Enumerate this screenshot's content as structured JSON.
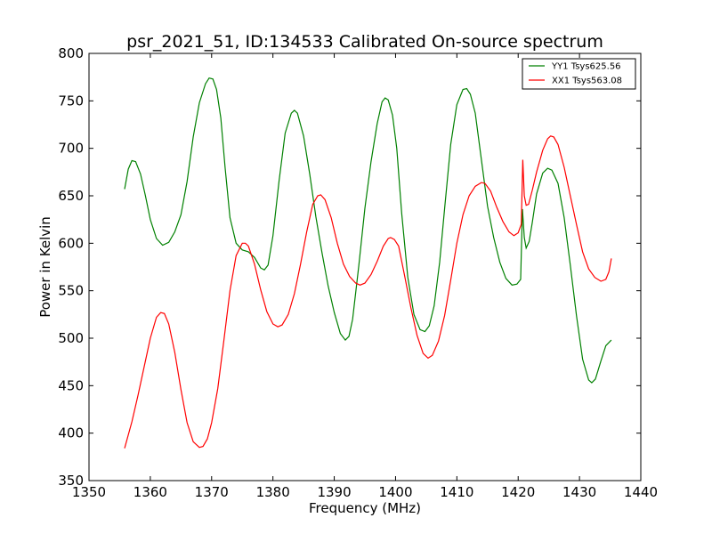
{
  "chart_data": {
    "type": "line",
    "title": "psr_2021_51, ID:134533 Calibrated On-source spectrum",
    "xlabel": "Frequency (MHz)",
    "ylabel": "Power in Kelvin",
    "xlim": [
      1350,
      1440
    ],
    "ylim": [
      350,
      800
    ],
    "xticks": [
      1350,
      1360,
      1370,
      1380,
      1390,
      1400,
      1410,
      1420,
      1430,
      1440
    ],
    "yticks": [
      350,
      400,
      450,
      500,
      550,
      600,
      650,
      700,
      750,
      800
    ],
    "grid": false,
    "legend": {
      "position": "top-right"
    },
    "series": [
      {
        "name": "YY1 Tsys625.56",
        "color": "#008000",
        "points": [
          [
            1355.8,
            657
          ],
          [
            1356.4,
            678
          ],
          [
            1357.0,
            687
          ],
          [
            1357.6,
            686
          ],
          [
            1358.4,
            673
          ],
          [
            1359.2,
            650
          ],
          [
            1360.0,
            625
          ],
          [
            1361.0,
            605
          ],
          [
            1362.0,
            598
          ],
          [
            1363.0,
            601
          ],
          [
            1364.0,
            612
          ],
          [
            1365.0,
            630
          ],
          [
            1366.0,
            665
          ],
          [
            1367.0,
            712
          ],
          [
            1368.0,
            748
          ],
          [
            1369.0,
            768
          ],
          [
            1369.6,
            774
          ],
          [
            1370.2,
            773
          ],
          [
            1370.8,
            762
          ],
          [
            1371.5,
            732
          ],
          [
            1372.2,
            680
          ],
          [
            1373.0,
            627
          ],
          [
            1374.0,
            600
          ],
          [
            1375.0,
            593
          ],
          [
            1376.0,
            591
          ],
          [
            1377.0,
            585
          ],
          [
            1378.0,
            574
          ],
          [
            1378.6,
            572
          ],
          [
            1379.2,
            577
          ],
          [
            1380.0,
            608
          ],
          [
            1381.0,
            666
          ],
          [
            1382.0,
            716
          ],
          [
            1383.0,
            737
          ],
          [
            1383.5,
            740
          ],
          [
            1384.0,
            737
          ],
          [
            1385.0,
            713
          ],
          [
            1386.0,
            673
          ],
          [
            1387.0,
            628
          ],
          [
            1388.0,
            590
          ],
          [
            1389.0,
            555
          ],
          [
            1390.0,
            527
          ],
          [
            1391.0,
            505
          ],
          [
            1391.8,
            498
          ],
          [
            1392.4,
            502
          ],
          [
            1393.0,
            520
          ],
          [
            1394.0,
            576
          ],
          [
            1395.0,
            637
          ],
          [
            1396.0,
            686
          ],
          [
            1397.0,
            726
          ],
          [
            1397.8,
            749
          ],
          [
            1398.3,
            753
          ],
          [
            1398.8,
            751
          ],
          [
            1399.5,
            735
          ],
          [
            1400.2,
            700
          ],
          [
            1401.0,
            632
          ],
          [
            1402.0,
            564
          ],
          [
            1403.0,
            525
          ],
          [
            1404.0,
            509
          ],
          [
            1404.8,
            507
          ],
          [
            1405.5,
            513
          ],
          [
            1406.3,
            534
          ],
          [
            1407.2,
            580
          ],
          [
            1408.0,
            637
          ],
          [
            1409.0,
            704
          ],
          [
            1410.0,
            746
          ],
          [
            1411.0,
            762
          ],
          [
            1411.6,
            763
          ],
          [
            1412.2,
            757
          ],
          [
            1413.0,
            737
          ],
          [
            1414.0,
            688
          ],
          [
            1415.0,
            639
          ],
          [
            1416.0,
            606
          ],
          [
            1417.0,
            580
          ],
          [
            1418.0,
            563
          ],
          [
            1419.0,
            556
          ],
          [
            1419.8,
            557
          ],
          [
            1420.4,
            562
          ],
          [
            1420.7,
            636
          ],
          [
            1421.0,
            606
          ],
          [
            1421.3,
            595
          ],
          [
            1421.8,
            602
          ],
          [
            1422.3,
            622
          ],
          [
            1423.0,
            652
          ],
          [
            1424.0,
            674
          ],
          [
            1424.8,
            679
          ],
          [
            1425.5,
            677
          ],
          [
            1426.5,
            663
          ],
          [
            1427.5,
            627
          ],
          [
            1428.5,
            577
          ],
          [
            1429.5,
            524
          ],
          [
            1430.5,
            478
          ],
          [
            1431.5,
            456
          ],
          [
            1432.0,
            453
          ],
          [
            1432.6,
            457
          ],
          [
            1433.5,
            476
          ],
          [
            1434.3,
            492
          ],
          [
            1435.2,
            498
          ]
        ]
      },
      {
        "name": "XX1 Tsys563.08",
        "color": "#ff0000",
        "points": [
          [
            1355.8,
            384
          ],
          [
            1357.0,
            412
          ],
          [
            1358.0,
            440
          ],
          [
            1359.0,
            470
          ],
          [
            1360.0,
            500
          ],
          [
            1361.0,
            522
          ],
          [
            1361.7,
            527
          ],
          [
            1362.3,
            526
          ],
          [
            1363.0,
            515
          ],
          [
            1364.0,
            485
          ],
          [
            1365.0,
            446
          ],
          [
            1366.0,
            411
          ],
          [
            1367.0,
            391
          ],
          [
            1368.0,
            385
          ],
          [
            1368.6,
            386
          ],
          [
            1369.3,
            394
          ],
          [
            1370.0,
            411
          ],
          [
            1371.0,
            447
          ],
          [
            1372.0,
            498
          ],
          [
            1373.0,
            550
          ],
          [
            1374.0,
            587
          ],
          [
            1375.0,
            600
          ],
          [
            1375.5,
            600
          ],
          [
            1376.0,
            597
          ],
          [
            1377.0,
            578
          ],
          [
            1378.0,
            551
          ],
          [
            1379.0,
            528
          ],
          [
            1380.0,
            515
          ],
          [
            1380.8,
            512
          ],
          [
            1381.5,
            514
          ],
          [
            1382.5,
            525
          ],
          [
            1383.5,
            547
          ],
          [
            1384.5,
            578
          ],
          [
            1385.5,
            612
          ],
          [
            1386.5,
            641
          ],
          [
            1387.3,
            650
          ],
          [
            1387.8,
            651
          ],
          [
            1388.5,
            646
          ],
          [
            1389.5,
            627
          ],
          [
            1390.5,
            600
          ],
          [
            1391.5,
            578
          ],
          [
            1392.5,
            565
          ],
          [
            1393.5,
            558
          ],
          [
            1394.2,
            556
          ],
          [
            1395.0,
            558
          ],
          [
            1396.0,
            567
          ],
          [
            1397.0,
            581
          ],
          [
            1398.0,
            597
          ],
          [
            1398.8,
            605
          ],
          [
            1399.2,
            606
          ],
          [
            1399.8,
            604
          ],
          [
            1400.5,
            597
          ],
          [
            1401.5,
            565
          ],
          [
            1402.5,
            532
          ],
          [
            1403.5,
            503
          ],
          [
            1404.5,
            484
          ],
          [
            1405.3,
            479
          ],
          [
            1406.0,
            482
          ],
          [
            1407.0,
            497
          ],
          [
            1408.0,
            524
          ],
          [
            1409.0,
            561
          ],
          [
            1410.0,
            600
          ],
          [
            1411.0,
            630
          ],
          [
            1412.0,
            650
          ],
          [
            1413.0,
            660
          ],
          [
            1414.0,
            664
          ],
          [
            1414.6,
            663
          ],
          [
            1415.5,
            655
          ],
          [
            1416.5,
            638
          ],
          [
            1417.5,
            623
          ],
          [
            1418.5,
            612
          ],
          [
            1419.3,
            608
          ],
          [
            1420.0,
            611
          ],
          [
            1420.5,
            620
          ],
          [
            1420.75,
            688
          ],
          [
            1421.0,
            650
          ],
          [
            1421.3,
            640
          ],
          [
            1421.7,
            641
          ],
          [
            1422.3,
            656
          ],
          [
            1423.0,
            675
          ],
          [
            1424.0,
            698
          ],
          [
            1424.8,
            710
          ],
          [
            1425.3,
            713
          ],
          [
            1425.8,
            712
          ],
          [
            1426.5,
            704
          ],
          [
            1427.5,
            680
          ],
          [
            1428.5,
            650
          ],
          [
            1429.5,
            620
          ],
          [
            1430.5,
            591
          ],
          [
            1431.5,
            573
          ],
          [
            1432.5,
            564
          ],
          [
            1433.5,
            560
          ],
          [
            1434.3,
            562
          ],
          [
            1434.8,
            570
          ],
          [
            1435.2,
            584
          ]
        ]
      }
    ]
  }
}
